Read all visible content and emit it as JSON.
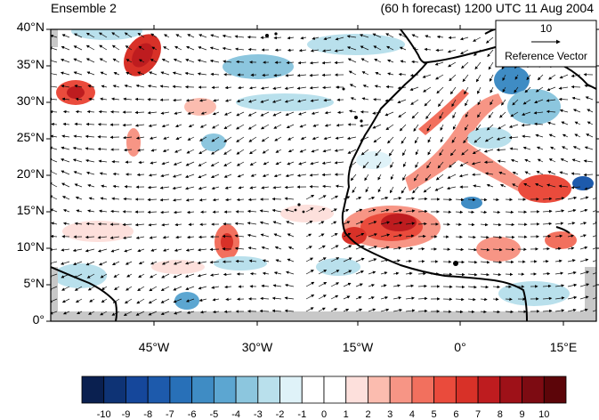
{
  "header": {
    "ensemble_label": "Ensemble 2",
    "forecast_label": "(60 h forecast) 1200 UTC 11 Aug 2004"
  },
  "reference_vector": {
    "magnitude": "10",
    "label": "Reference Vector"
  },
  "map": {
    "lat_ticks": [
      "40°N",
      "35°N",
      "30°N",
      "25°N",
      "20°N",
      "15°N",
      "10°N",
      "5°N",
      "0°"
    ],
    "lon_ticks": [
      "45°W",
      "30°W",
      "15°W",
      "0°",
      "15°E"
    ]
  },
  "colorbar": {
    "labels": [
      "-10",
      "-9",
      "-8",
      "-7",
      "-6",
      "-5",
      "-4",
      "-3",
      "-2",
      "-1",
      "0",
      "1",
      "2",
      "3",
      "4",
      "5",
      "6",
      "7",
      "8",
      "9",
      "10"
    ],
    "colors": [
      "#0a2050",
      "#0e3375",
      "#15479b",
      "#1d5aac",
      "#2870b8",
      "#3f8cc4",
      "#5ca6d1",
      "#8cc6de",
      "#b9e0ec",
      "#dff2f8",
      "#ffffff",
      "#ffffff",
      "#fde0dc",
      "#fbbcaf",
      "#f79585",
      "#f2705e",
      "#ea4b3c",
      "#d83128",
      "#be1c1f",
      "#9e1118",
      "#7d0b12",
      "#5c0509"
    ]
  }
}
